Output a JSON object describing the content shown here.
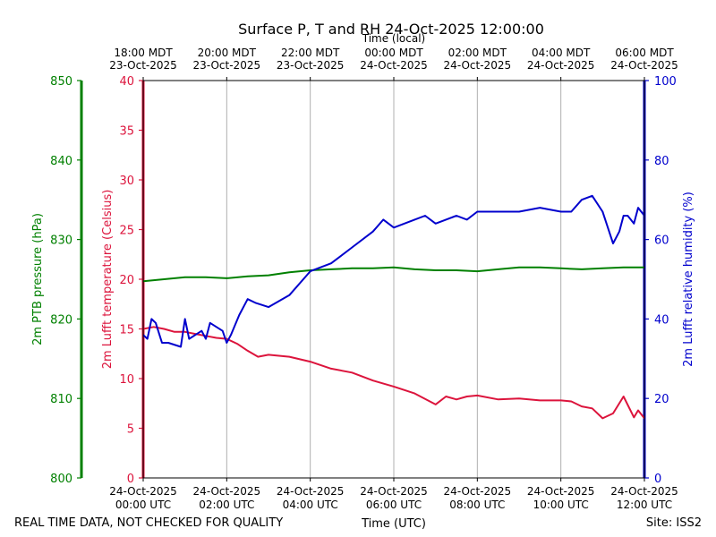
{
  "chart_data": {
    "type": "line",
    "title": "Surface P, T and RH 24-Oct-2025 12:00:00",
    "top_axis": {
      "label": "Time (local)",
      "ticks": [
        {
          "line1": "18:00 MDT",
          "line2": "23-Oct-2025"
        },
        {
          "line1": "20:00 MDT",
          "line2": "23-Oct-2025"
        },
        {
          "line1": "22:00 MDT",
          "line2": "23-Oct-2025"
        },
        {
          "line1": "00:00 MDT",
          "line2": "24-Oct-2025"
        },
        {
          "line1": "02:00 MDT",
          "line2": "24-Oct-2025"
        },
        {
          "line1": "04:00 MDT",
          "line2": "24-Oct-2025"
        },
        {
          "line1": "06:00 MDT",
          "line2": "24-Oct-2025"
        }
      ]
    },
    "bottom_axis": {
      "label": "Time (UTC)",
      "range_hours": [
        0,
        12
      ],
      "ticks": [
        {
          "hour": 0,
          "line1": "24-Oct-2025",
          "line2": "00:00 UTC"
        },
        {
          "hour": 2,
          "line1": "24-Oct-2025",
          "line2": "02:00 UTC"
        },
        {
          "hour": 4,
          "line1": "24-Oct-2025",
          "line2": "04:00 UTC"
        },
        {
          "hour": 6,
          "line1": "24-Oct-2025",
          "line2": "06:00 UTC"
        },
        {
          "hour": 8,
          "line1": "24-Oct-2025",
          "line2": "08:00 UTC"
        },
        {
          "hour": 10,
          "line1": "24-Oct-2025",
          "line2": "10:00 UTC"
        },
        {
          "hour": 12,
          "line1": "24-Oct-2025",
          "line2": "12:00 UTC"
        }
      ]
    },
    "axes": {
      "pressure": {
        "label": "2m PTB pressure (hPa)",
        "ylim": [
          800,
          850
        ],
        "ticks": [
          "800",
          "810",
          "820",
          "830",
          "840",
          "850"
        ],
        "color": "#008000"
      },
      "temperature": {
        "label": "2m Lufft temperature (Celsius)",
        "ylim": [
          0,
          40
        ],
        "ticks": [
          "0",
          "5",
          "10",
          "15",
          "20",
          "25",
          "30",
          "35",
          "40"
        ],
        "color": "#dc143c"
      },
      "humidity": {
        "label": "2m Lufft relative humidity (%)",
        "ylim": [
          0,
          100
        ],
        "ticks": [
          "0",
          "20",
          "40",
          "60",
          "80",
          "100"
        ],
        "color": "#0000cd"
      }
    },
    "series": [
      {
        "name": "pressure",
        "axis": "temperature",
        "color": "#008000",
        "x": [
          0,
          0.5,
          1,
          1.5,
          2,
          2.5,
          3,
          3.5,
          4,
          4.5,
          5,
          5.5,
          6,
          6.5,
          7,
          7.5,
          8,
          8.5,
          9,
          9.5,
          10,
          10.5,
          11,
          11.5,
          12
        ],
        "values": [
          19.8,
          20.0,
          20.2,
          20.2,
          20.1,
          20.3,
          20.4,
          20.7,
          20.9,
          21.0,
          21.1,
          21.1,
          21.2,
          21.0,
          20.9,
          20.9,
          20.8,
          21.0,
          21.2,
          21.2,
          21.1,
          21.0,
          21.1,
          21.2,
          21.2
        ]
      },
      {
        "name": "temperature",
        "axis": "temperature",
        "color": "#dc143c",
        "x": [
          0,
          0.25,
          0.5,
          0.75,
          1,
          1.25,
          1.5,
          1.75,
          2,
          2.25,
          2.5,
          2.75,
          3,
          3.5,
          4,
          4.5,
          5,
          5.5,
          6,
          6.5,
          7,
          7.25,
          7.5,
          7.75,
          8,
          8.5,
          9,
          9.5,
          10,
          10.25,
          10.5,
          10.75,
          11,
          11.25,
          11.5,
          11.75,
          11.85,
          12
        ],
        "values": [
          15.0,
          15.2,
          15.0,
          14.7,
          14.7,
          14.5,
          14.3,
          14.1,
          14.0,
          13.5,
          12.8,
          12.2,
          12.4,
          12.2,
          11.7,
          11.0,
          10.6,
          9.8,
          9.2,
          8.5,
          7.4,
          8.2,
          7.9,
          8.2,
          8.3,
          7.9,
          8.0,
          7.8,
          7.8,
          7.7,
          7.2,
          7.0,
          6.0,
          6.5,
          8.2,
          6.1,
          6.8,
          6.0
        ]
      },
      {
        "name": "humidity",
        "axis": "humidity",
        "color": "#0000cd",
        "x": [
          0,
          0.1,
          0.2,
          0.3,
          0.45,
          0.6,
          0.9,
          1.0,
          1.1,
          1.4,
          1.5,
          1.6,
          1.9,
          2.0,
          2.1,
          2.3,
          2.5,
          2.7,
          3.0,
          3.5,
          4.0,
          4.5,
          5.0,
          5.5,
          5.75,
          6.0,
          6.5,
          6.75,
          7.0,
          7.25,
          7.5,
          7.75,
          8.0,
          8.5,
          9.0,
          9.5,
          10.0,
          10.25,
          10.5,
          10.75,
          11.0,
          11.25,
          11.4,
          11.5,
          11.6,
          11.75,
          11.85,
          12
        ],
        "values": [
          36,
          35,
          40,
          39,
          34,
          34,
          33,
          40,
          35,
          37,
          35,
          39,
          37,
          34,
          36,
          41,
          45,
          44,
          43,
          46,
          52,
          54,
          58,
          62,
          65,
          63,
          65,
          66,
          64,
          65,
          66,
          65,
          67,
          67,
          67,
          68,
          67,
          67,
          70,
          71,
          67,
          59,
          62,
          66,
          66,
          64,
          68,
          66
        ]
      }
    ],
    "footer_left": "REAL TIME DATA, NOT CHECKED FOR QUALITY",
    "footer_right": "Site: ISS2"
  }
}
